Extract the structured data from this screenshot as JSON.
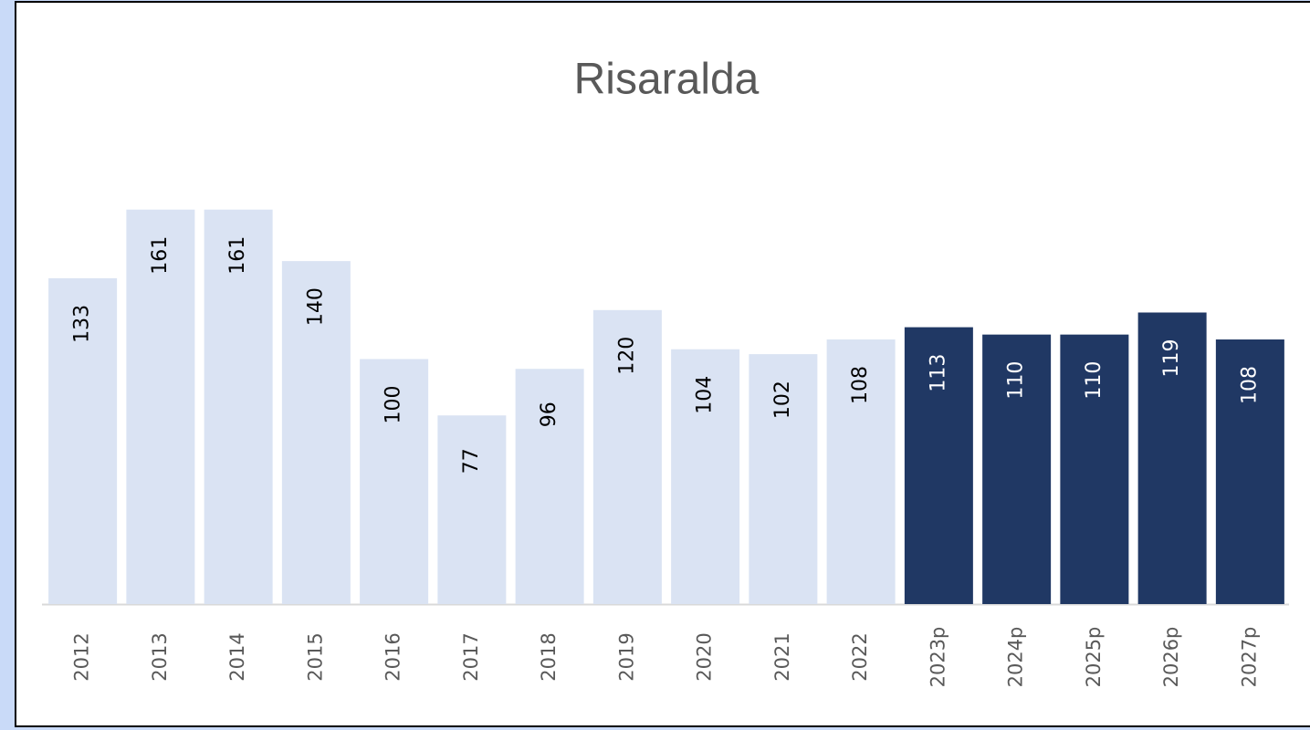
{
  "chart_data": {
    "type": "bar",
    "title": "Risaralda",
    "categories": [
      "2012",
      "2013",
      "2014",
      "2015",
      "2016",
      "2017",
      "2018",
      "2019",
      "2020",
      "2021",
      "2022",
      "2023p",
      "2024p",
      "2025p",
      "2026p",
      "2027p"
    ],
    "values": [
      133,
      161,
      161,
      140,
      100,
      77,
      96,
      120,
      104,
      102,
      108,
      113,
      110,
      110,
      119,
      108
    ],
    "colors": [
      "#dae3f3",
      "#dae3f3",
      "#dae3f3",
      "#dae3f3",
      "#dae3f3",
      "#dae3f3",
      "#dae3f3",
      "#dae3f3",
      "#dae3f3",
      "#dae3f3",
      "#dae3f3",
      "#203864",
      "#203864",
      "#203864",
      "#203864",
      "#203864"
    ],
    "ylim": [
      0,
      200
    ]
  }
}
